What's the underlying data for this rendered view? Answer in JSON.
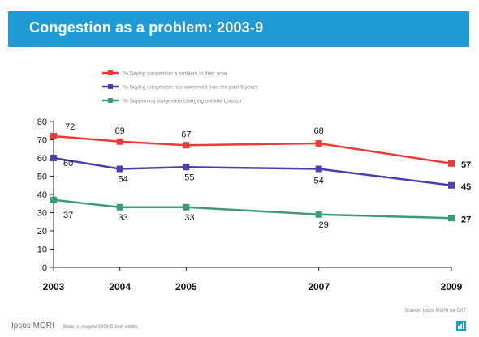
{
  "title": "Congestion as a problem: 2003-9",
  "colors": {
    "title_bar": "#1f9ad4",
    "red": "#ee3a36",
    "blue": "#4b3fb0",
    "green": "#3c9c7a"
  },
  "chart_data": {
    "type": "line",
    "x": [
      "2003",
      "2004",
      "2005",
      "2007",
      "2009"
    ],
    "x_positions": [
      2003,
      2004,
      2005,
      2007,
      2009
    ],
    "ylim": [
      0,
      80
    ],
    "yticks": [
      0,
      10,
      20,
      30,
      40,
      50,
      60,
      70,
      80
    ],
    "grid": false,
    "legend_position": "top-center",
    "series": [
      {
        "name": "% Saying congestion a problem in their area",
        "color": "#ee3a36",
        "values": [
          72,
          69,
          67,
          68,
          57
        ]
      },
      {
        "name": "% Saying congestion has worsened over the past 5 years",
        "color": "#4b3fb0",
        "values": [
          60,
          54,
          55,
          54,
          45
        ]
      },
      {
        "name": "% Supporting congestion charging outside London",
        "color": "#3c9c7a",
        "values": [
          37,
          33,
          33,
          29,
          27
        ]
      }
    ]
  },
  "footer": {
    "brand": "Ipsos MORI",
    "base": "Base: c. August 2009 British adults",
    "source": "Source: Ipsos MORI for CfIT"
  }
}
